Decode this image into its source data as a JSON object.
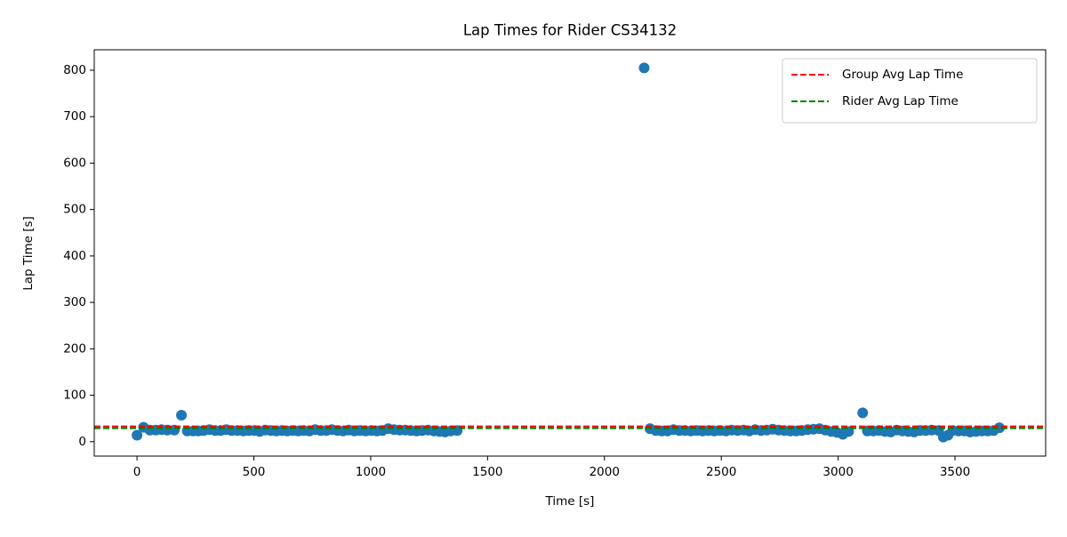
{
  "chart_data": {
    "type": "scatter",
    "title": "Lap Times for Rider CS34132",
    "xlabel": "Time [s]",
    "ylabel": "Lap Time [s]",
    "color": "#1f77b4",
    "x": [
      0,
      28,
      55,
      80,
      105,
      130,
      160,
      190,
      215,
      240,
      262,
      285,
      310,
      335,
      358,
      382,
      405,
      430,
      455,
      478,
      502,
      525,
      548,
      572,
      596,
      620,
      643,
      667,
      690,
      714,
      738,
      762,
      786,
      810,
      834,
      858,
      882,
      906,
      930,
      954,
      978,
      1002,
      1026,
      1050,
      1075,
      1100,
      1124,
      1148,
      1172,
      1196,
      1220,
      1245,
      1270,
      1294,
      1318,
      1342,
      1370,
      2170,
      2195,
      2220,
      2245,
      2270,
      2295,
      2320,
      2345,
      2370,
      2395,
      2420,
      2445,
      2470,
      2495,
      2520,
      2545,
      2570,
      2595,
      2620,
      2645,
      2670,
      2695,
      2720,
      2745,
      2770,
      2795,
      2820,
      2845,
      2870,
      2895,
      2920,
      2945,
      2970,
      2995,
      3020,
      3045,
      3105,
      3125,
      3150,
      3175,
      3200,
      3225,
      3250,
      3275,
      3300,
      3325,
      3350,
      3375,
      3400,
      3430,
      3450,
      3470,
      3490,
      3515,
      3540,
      3565,
      3590,
      3615,
      3640,
      3665,
      3690
    ],
    "values": [
      14,
      31,
      25,
      25,
      26,
      25,
      25,
      57,
      23,
      23,
      23,
      24,
      26,
      24,
      24,
      26,
      24,
      24,
      23,
      24,
      24,
      22,
      25,
      24,
      23,
      24,
      23,
      24,
      23,
      24,
      23,
      26,
      24,
      24,
      26,
      24,
      23,
      25,
      23,
      24,
      23,
      24,
      23,
      24,
      28,
      26,
      25,
      25,
      24,
      23,
      24,
      25,
      23,
      22,
      21,
      23,
      24,
      805,
      28,
      24,
      23,
      23,
      26,
      24,
      24,
      23,
      24,
      23,
      24,
      23,
      24,
      23,
      25,
      24,
      25,
      23,
      26,
      24,
      25,
      27,
      25,
      24,
      23,
      23,
      24,
      26,
      27,
      28,
      25,
      22,
      20,
      16,
      22,
      62,
      23,
      23,
      24,
      22,
      21,
      25,
      23,
      22,
      21,
      24,
      24,
      25,
      24,
      10,
      14,
      24,
      23,
      23,
      21,
      22,
      23,
      23,
      24,
      30
    ],
    "reference_lines": [
      {
        "name": "Group Avg Lap Time",
        "color": "#ff0000",
        "value": 33
      },
      {
        "name": "Rider Avg Lap Time",
        "color": "#008000",
        "value": 29
      }
    ],
    "xlim": [
      -183,
      3888
    ],
    "ylim": [
      -31,
      844
    ],
    "xticks": [
      0,
      500,
      1000,
      1500,
      2000,
      2500,
      3000,
      3500
    ],
    "yticks": [
      0,
      100,
      200,
      300,
      400,
      500,
      600,
      700,
      800
    ],
    "legend": "upper right"
  }
}
